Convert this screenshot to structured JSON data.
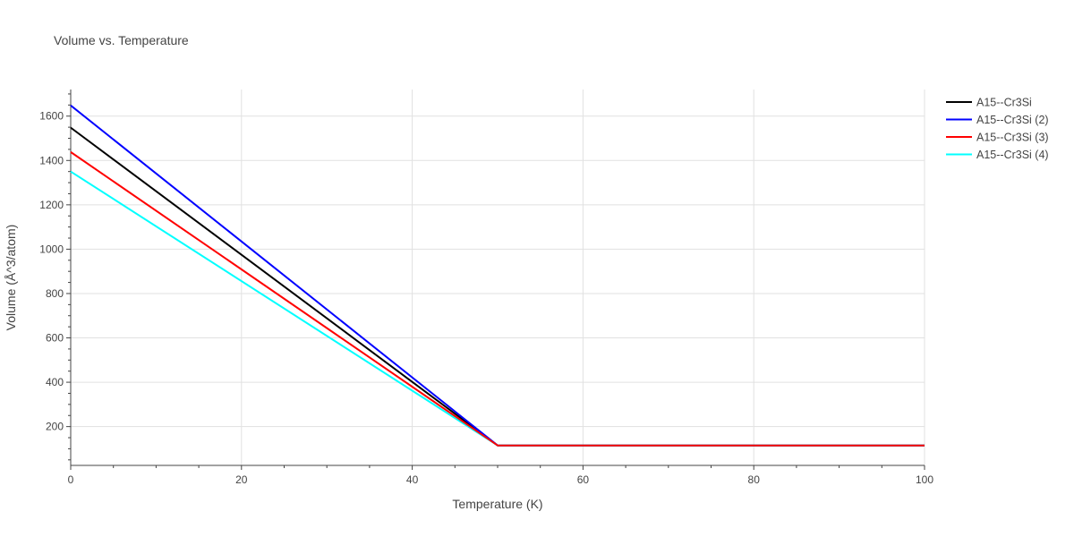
{
  "chart_data": {
    "type": "line",
    "title": "Volume vs. Temperature",
    "xlabel": "Temperature (K)",
    "ylabel": "Volume (Å^3/atom)",
    "xlim": [
      0,
      100
    ],
    "ylim": [
      25,
      1720
    ],
    "x_ticks": [
      0,
      20,
      40,
      60,
      80,
      100
    ],
    "y_ticks": [
      200,
      400,
      600,
      800,
      1000,
      1200,
      1400,
      1600
    ],
    "grid": true,
    "legend_position": "top-right",
    "series": [
      {
        "name": "A15--Cr3Si",
        "color": "#000000",
        "x": [
          0,
          50,
          100
        ],
        "y": [
          1548,
          115,
          115
        ]
      },
      {
        "name": "A15--Cr3Si (2)",
        "color": "#0000ff",
        "x": [
          0,
          50,
          100
        ],
        "y": [
          1648,
          115,
          115
        ]
      },
      {
        "name": "A15--Cr3Si (3)",
        "color": "#ff0000",
        "x": [
          0,
          50,
          100
        ],
        "y": [
          1438,
          115,
          115
        ]
      },
      {
        "name": "A15--Cr3Si (4)",
        "color": "#00ffff",
        "x": [
          0,
          50,
          100
        ],
        "y": [
          1350,
          115,
          115
        ]
      }
    ],
    "draw_order": [
      0,
      1,
      3,
      2
    ]
  }
}
